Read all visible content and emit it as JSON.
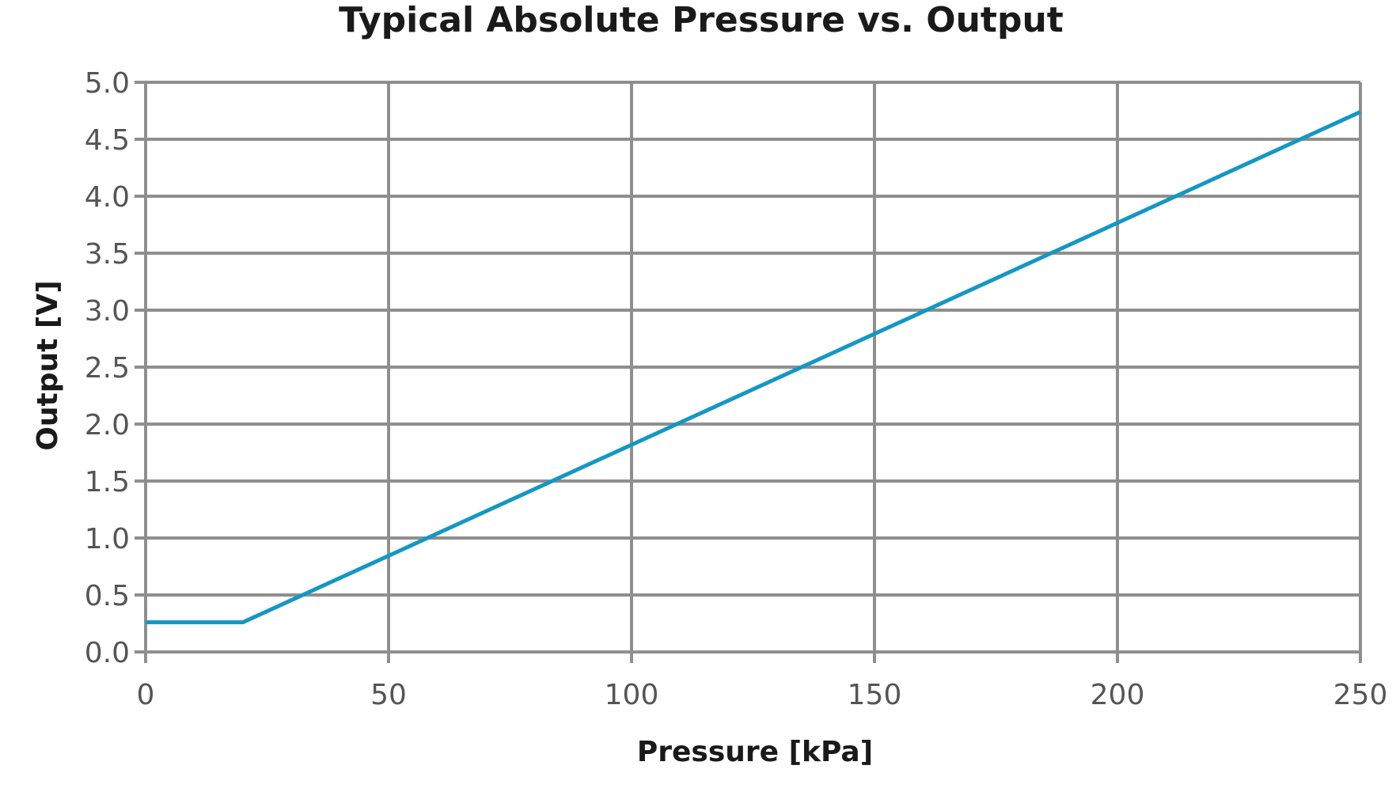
{
  "chart_data": {
    "type": "line",
    "title": "Typical Absolute Pressure vs. Output",
    "xlabel": "Pressure [kPa]",
    "ylabel": "Output [V]",
    "xlim": [
      0,
      250
    ],
    "ylim": [
      0.0,
      5.0
    ],
    "x_ticks": [
      0,
      50,
      100,
      150,
      200,
      250
    ],
    "x_tick_labels": [
      "0",
      "50",
      "100",
      "150",
      "200",
      "250"
    ],
    "y_ticks": [
      0.0,
      0.5,
      1.0,
      1.5,
      2.0,
      2.5,
      3.0,
      3.5,
      4.0,
      4.5,
      5.0
    ],
    "y_tick_labels": [
      "0.0",
      "0.5",
      "1.0",
      "1.5",
      "2.0",
      "2.5",
      "3.0",
      "3.5",
      "4.0",
      "4.5",
      "5.0"
    ],
    "grid": true,
    "legend": "none",
    "series": [
      {
        "color": "#1597c4",
        "x": [
          0,
          20,
          250
        ],
        "y": [
          0.26,
          0.26,
          4.74
        ]
      }
    ]
  }
}
